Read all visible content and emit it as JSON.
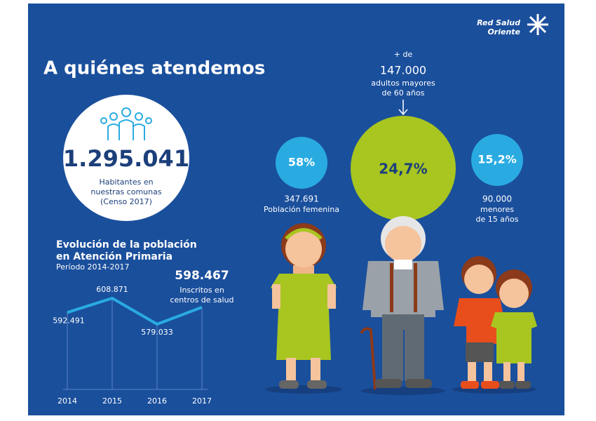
{
  "logo": {
    "line1": "Red Salud",
    "line2": "Oriente"
  },
  "heading": "A quiénes atendemos",
  "population": {
    "value": "1.295.041",
    "lines": [
      "Habitantes en",
      "nuestras comunas",
      "(Censo 2017)"
    ]
  },
  "groups": [
    {
      "percent": "58%",
      "count": "347.691",
      "lines": [
        "Población femenina"
      ]
    },
    {
      "prefix": "+ de",
      "count": "147.000",
      "percent": "24,7%",
      "lines": [
        "adultos mayores",
        "de 60 años"
      ]
    },
    {
      "percent": "15,2%",
      "count": "90.000",
      "lines": [
        "menores",
        "de 15 años"
      ]
    }
  ],
  "chart_data": {
    "type": "line",
    "title": [
      "Evolución de la población",
      "en Atención Primaria"
    ],
    "subtitle": "Período 2014-2017",
    "categories": [
      "2014",
      "2015",
      "2016",
      "2017"
    ],
    "values": [
      592491,
      608871,
      579033,
      598467
    ],
    "value_labels": [
      "592.491",
      "608.871",
      "579.033",
      "598.467"
    ],
    "annotation": [
      "Inscritos en",
      "centros de salud"
    ],
    "color": "#29abe2"
  }
}
